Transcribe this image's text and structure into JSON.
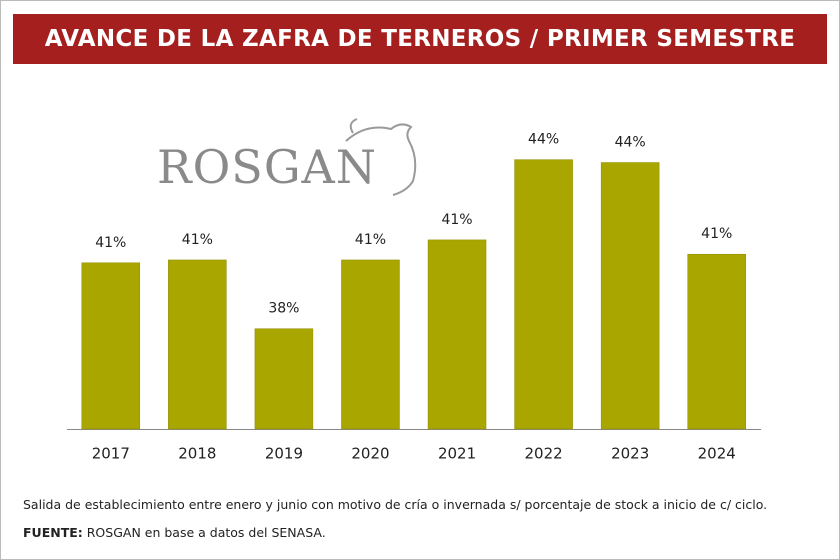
{
  "chart_data": {
    "type": "bar",
    "title": "AVANCE DE LA ZAFRA DE TERNEROS / PRIMER SEMESTRE",
    "logo": "ROSGAN",
    "categories": [
      "2017",
      "2018",
      "2019",
      "2020",
      "2021",
      "2022",
      "2023",
      "2024"
    ],
    "values": [
      40.6,
      40.7,
      38.3,
      40.7,
      41.4,
      44.2,
      44.1,
      40.9
    ],
    "value_labels": [
      "41%",
      "41%",
      "38%",
      "41%",
      "41%",
      "44%",
      "44%",
      "41%"
    ],
    "color": "#a9a600",
    "ylim": [
      34.8,
      45.2
    ],
    "note": "Salida de establecimiento entre enero y junio con motivo de cría o invernada s/ porcentaje de stock a inicio de c/ ciclo.",
    "source_label": "FUENTE:",
    "source": "ROSGAN en base a datos del SENASA."
  }
}
